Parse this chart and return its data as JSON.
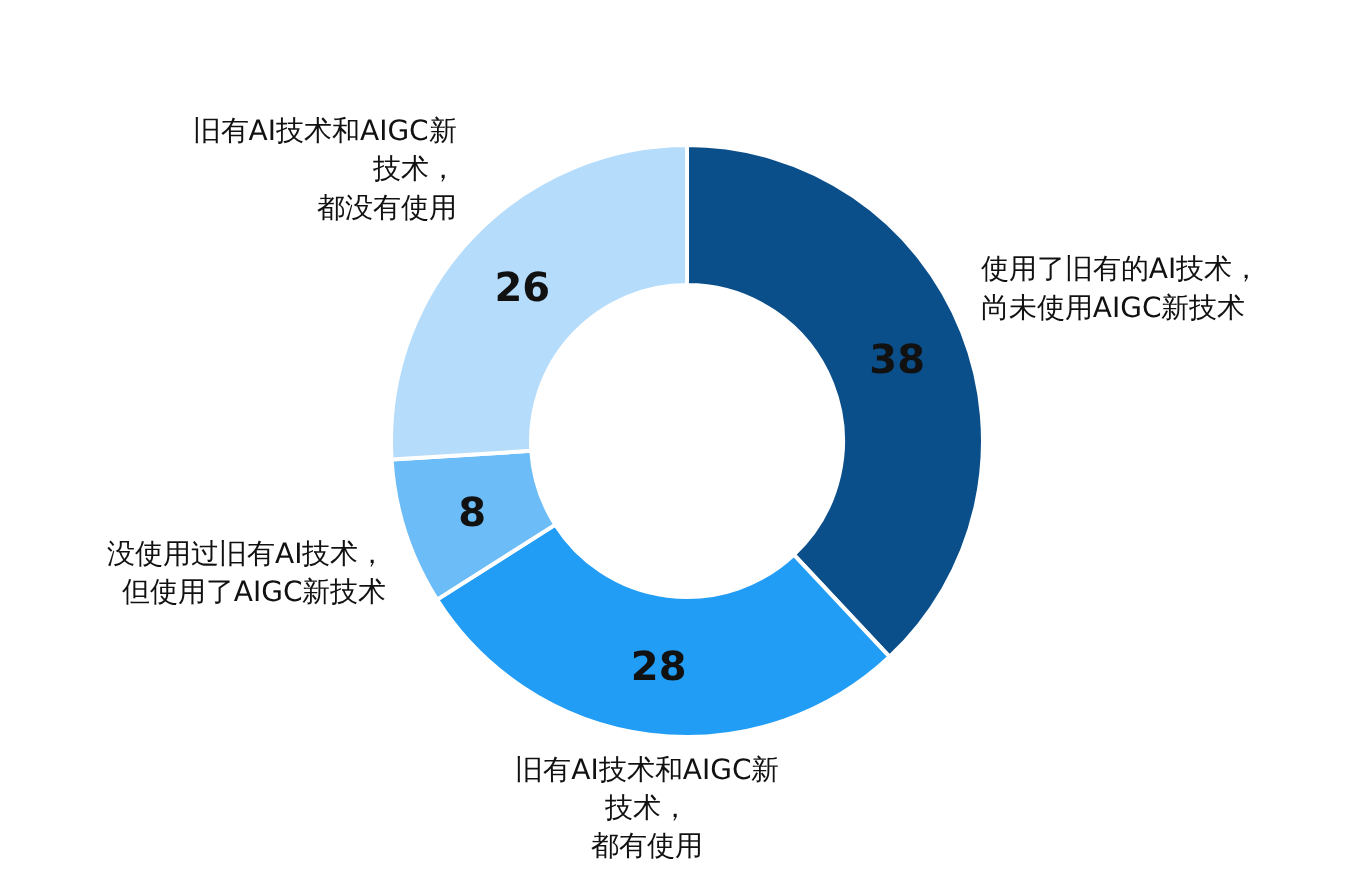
{
  "chart_data": {
    "type": "donut",
    "categories": [
      "使用了旧有的AI技术，尚未使用AIGC新技术",
      "旧有AI技术和AIGC新技术，都有使用",
      "没使用过旧有AI技术，但使用了AIGC新技术",
      "旧有AI技术和AIGC新技术，都没有使用"
    ],
    "values": [
      38,
      28,
      8,
      26
    ],
    "colors": [
      "#0b4f8a",
      "#229df5",
      "#6cbcf7",
      "#b6dcfb"
    ],
    "data_labels": true
  }
}
